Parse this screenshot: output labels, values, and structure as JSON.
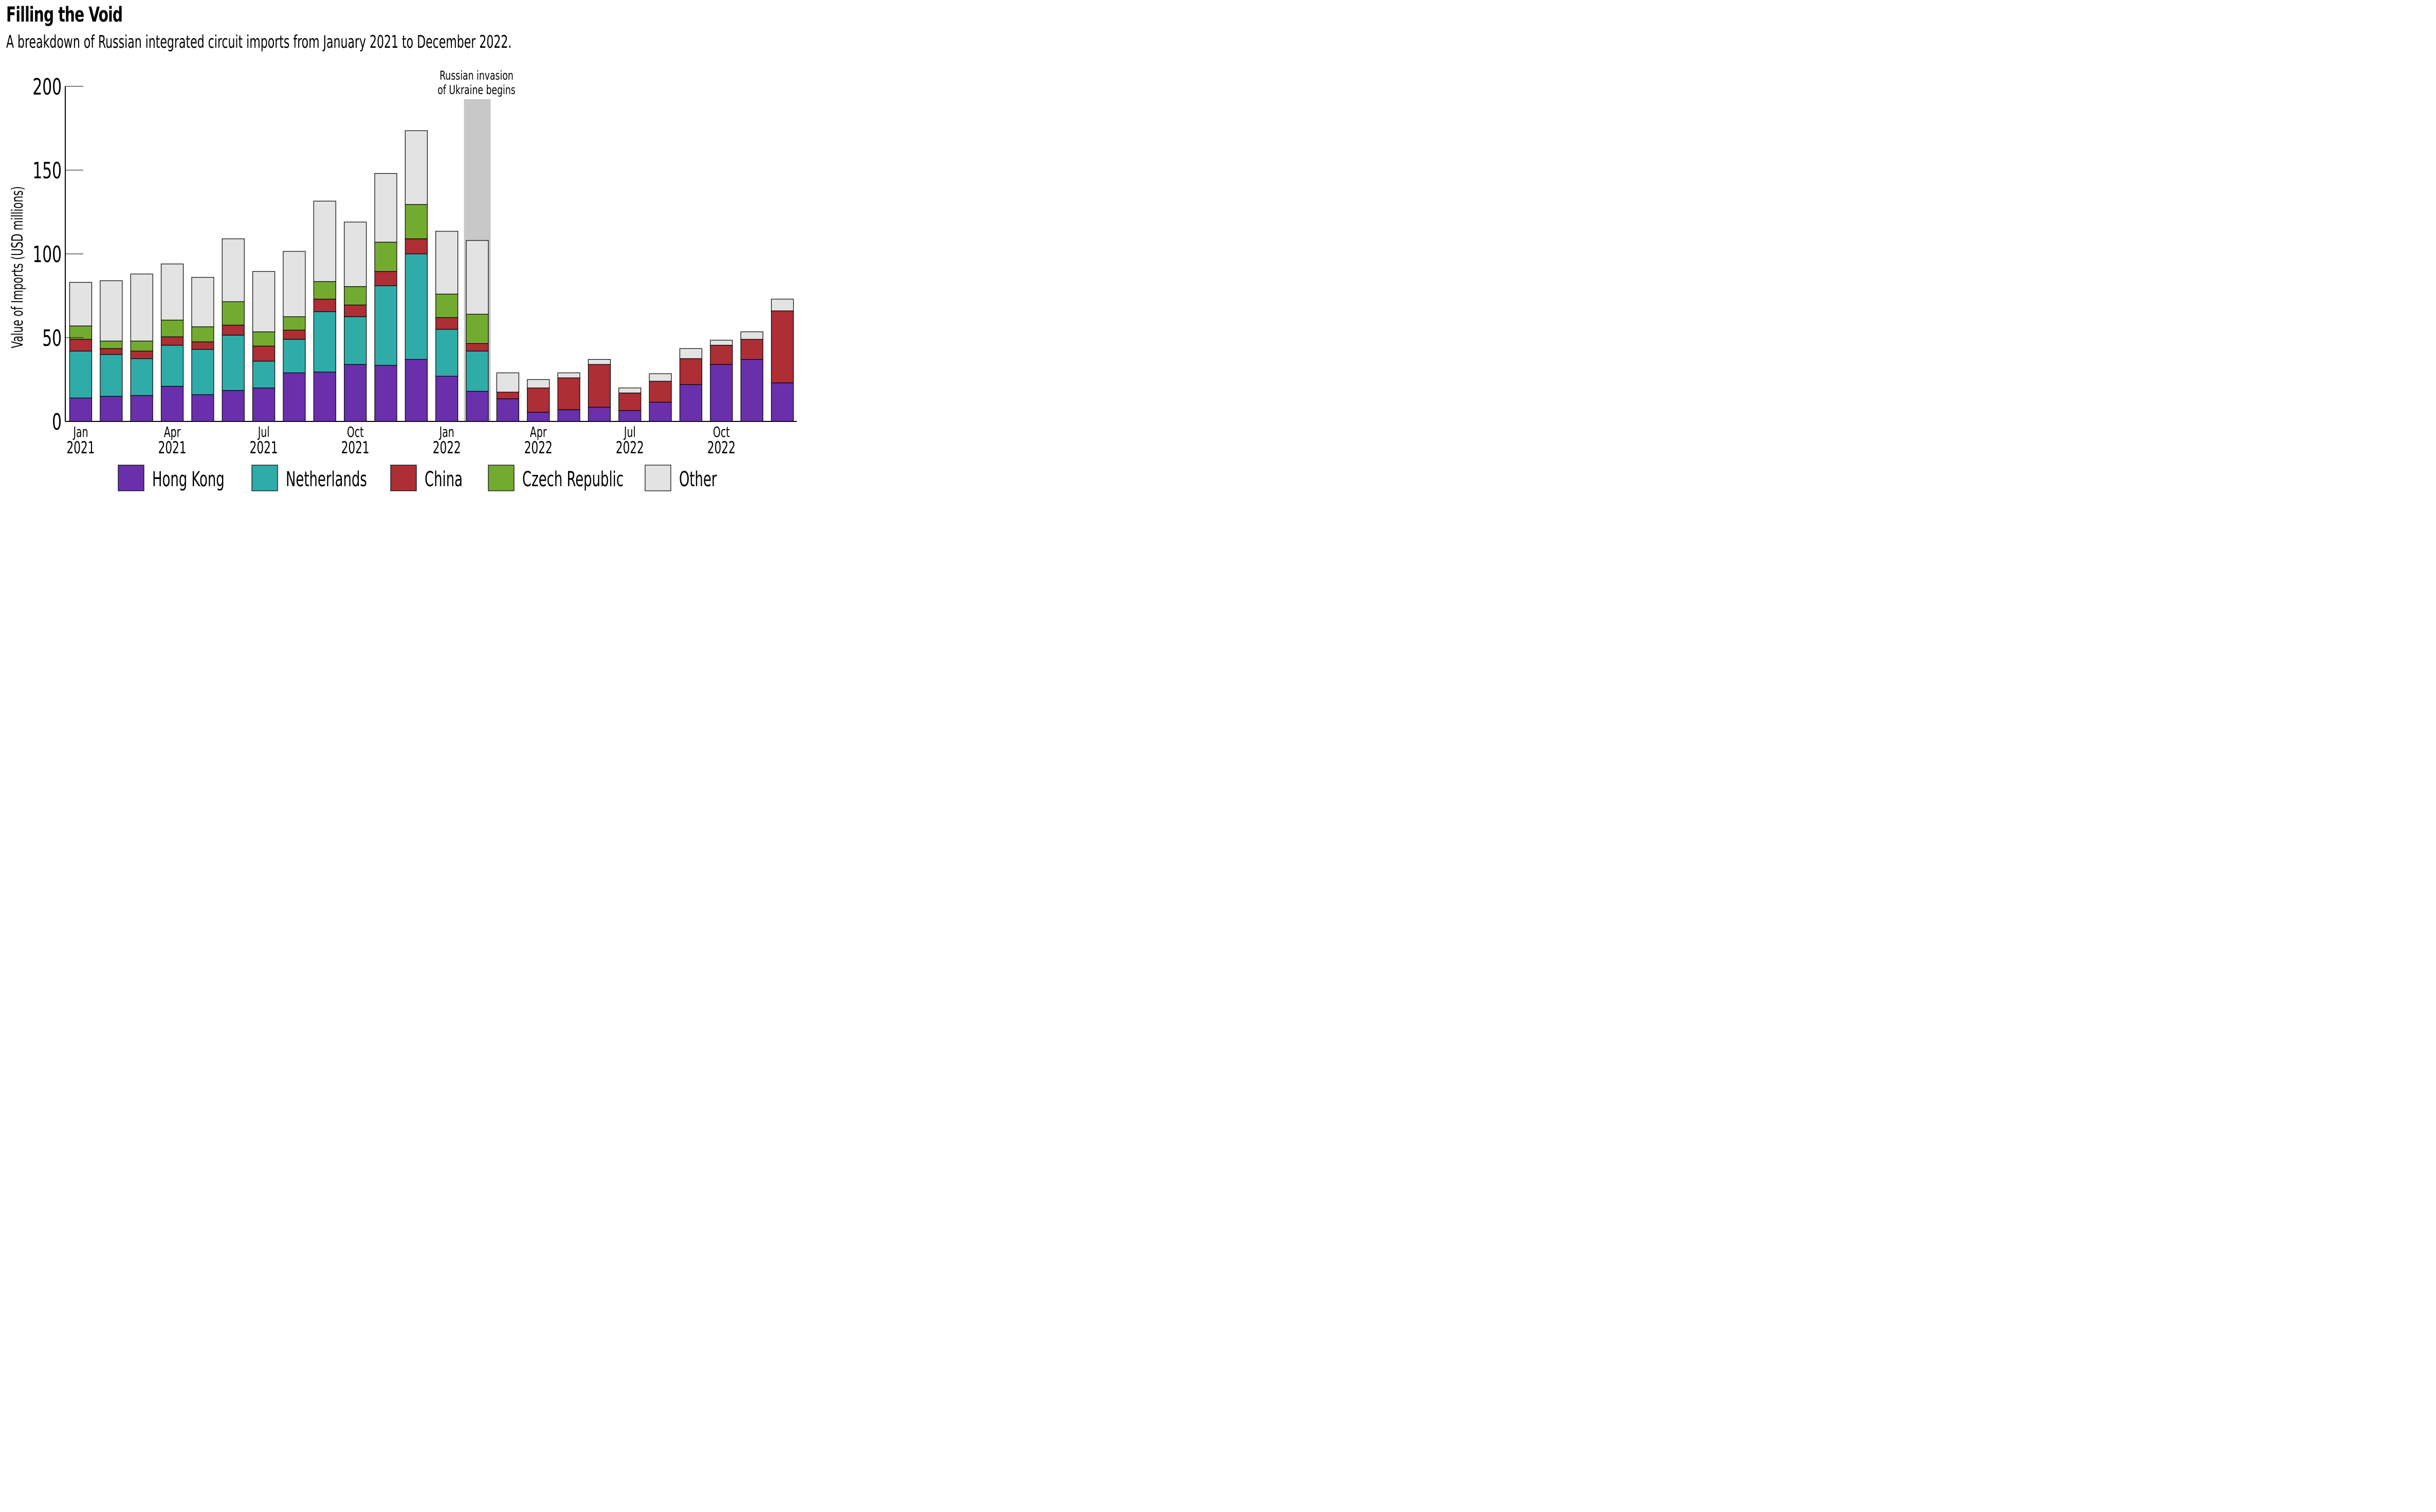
{
  "header": {
    "title": "Filling the Void",
    "subtitle": "A breakdown of Russian integrated circuit imports from January 2021 to December 2022."
  },
  "chart_data": {
    "type": "bar",
    "stacked": true,
    "title": "Filling the Void",
    "subtitle": "A breakdown of Russian integrated circuit imports from January 2021 to December 2022.",
    "xlabel": "",
    "ylabel": "Value of Imports (USD millions)",
    "ylim": [
      0,
      200
    ],
    "yticks": [
      0,
      50,
      100,
      150,
      200
    ],
    "grid": false,
    "legend_position": "bottom",
    "categories": [
      "Jan 2021",
      "Feb 2021",
      "Mar 2021",
      "Apr 2021",
      "May 2021",
      "Jun 2021",
      "Jul 2021",
      "Aug 2021",
      "Sep 2021",
      "Oct 2021",
      "Nov 2021",
      "Dec 2021",
      "Jan 2022",
      "Feb 2022",
      "Mar 2022",
      "Apr 2022",
      "May 2022",
      "Jun 2022",
      "Jul 2022",
      "Aug 2022",
      "Sep 2022",
      "Oct 2022",
      "Nov 2022",
      "Dec 2022"
    ],
    "xtick_labels": [
      {
        "index": 0,
        "line1": "Jan",
        "line2": "2021"
      },
      {
        "index": 3,
        "line1": "Apr",
        "line2": "2021"
      },
      {
        "index": 6,
        "line1": "Jul",
        "line2": "2021"
      },
      {
        "index": 9,
        "line1": "Oct",
        "line2": "2021"
      },
      {
        "index": 12,
        "line1": "Jan",
        "line2": "2022"
      },
      {
        "index": 15,
        "line1": "Apr",
        "line2": "2022"
      },
      {
        "index": 18,
        "line1": "Jul",
        "line2": "2022"
      },
      {
        "index": 21,
        "line1": "Oct",
        "line2": "2022"
      }
    ],
    "series": [
      {
        "name": "Hong Kong",
        "color": "#6a30ab",
        "values": [
          14,
          15,
          15.5,
          21,
          16,
          18.5,
          20,
          29,
          29.5,
          34,
          33.5,
          37,
          27,
          18,
          13.5,
          5.5,
          7,
          8.5,
          6.5,
          11.5,
          22,
          34,
          37,
          23
        ]
      },
      {
        "name": "Netherlands",
        "color": "#30aca8",
        "values": [
          28,
          25,
          22,
          24.5,
          27,
          33,
          16,
          20,
          36,
          28.5,
          47.5,
          63,
          28,
          24,
          0,
          0,
          0,
          0,
          0,
          0,
          0,
          0,
          0,
          0
        ]
      },
      {
        "name": "China",
        "color": "#ad2e35",
        "values": [
          7,
          3.5,
          4.5,
          5,
          4.5,
          6,
          9,
          5.5,
          7.5,
          7,
          8.5,
          9,
          7,
          4.5,
          4,
          14.5,
          19,
          25.5,
          10.5,
          12.5,
          15.5,
          11.5,
          12,
          43
        ]
      },
      {
        "name": "Czech Republic",
        "color": "#73ab31",
        "values": [
          8,
          4.5,
          6,
          10,
          9,
          14,
          8.5,
          8,
          10.5,
          11,
          17.5,
          20.5,
          14,
          17.5,
          0,
          0,
          0,
          0,
          0,
          0,
          0,
          0,
          0,
          0
        ]
      },
      {
        "name": "Other",
        "color": "#e3e3e3",
        "values": [
          26,
          36,
          40,
          33.5,
          29.5,
          37.5,
          36,
          39,
          48,
          38.5,
          41,
          44,
          37.5,
          44,
          11.5,
          5,
          3,
          3,
          3,
          4.5,
          6,
          3,
          4.5,
          7
        ]
      }
    ],
    "annotations": [
      {
        "text_line1": "Russian invasion",
        "text_line2": "of Ukraine begins",
        "band_at_index": 13,
        "band_color": "#c8c8c8"
      }
    ]
  }
}
